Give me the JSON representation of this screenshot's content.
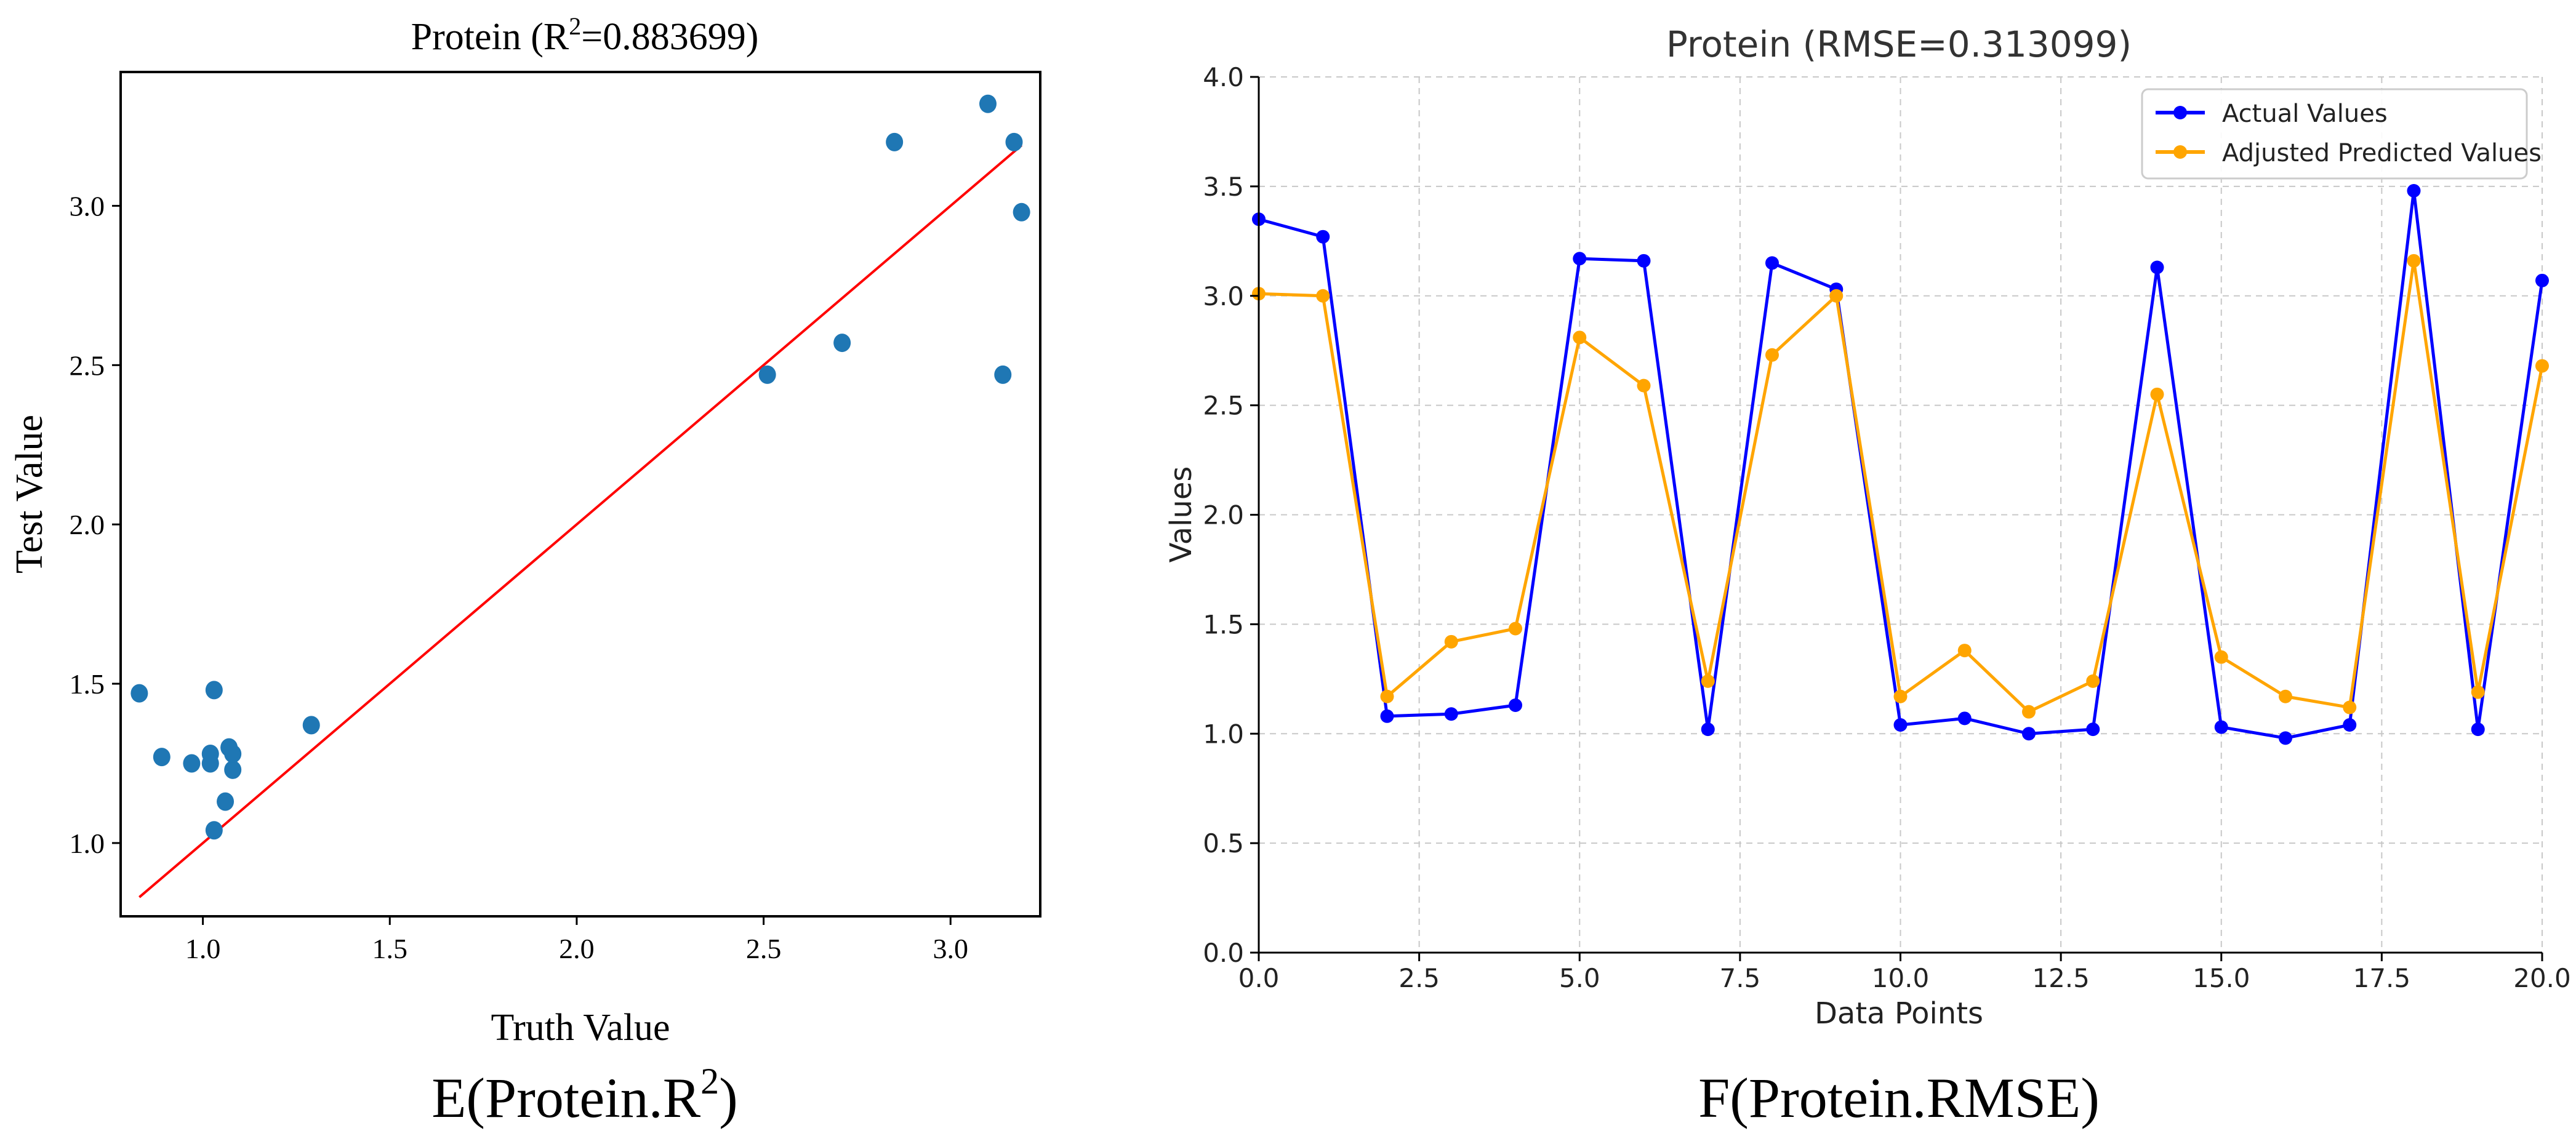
{
  "charts": {
    "left": {
      "title": "Protein (R2=0.883699)",
      "caption": "E(Protein.R2)"
    },
    "right": {
      "caption": "F(Protein.RMSE)"
    }
  },
  "chart_data": [
    {
      "type": "scatter",
      "title": "Protein (R²=0.883699)",
      "title_prefix": "Protein (R",
      "title_sup": "2",
      "title_suffix": "=0.883699)",
      "xlabel": "Truth Value",
      "ylabel": "Test Value",
      "xlim": [
        0.78,
        3.24
      ],
      "ylim": [
        0.77,
        3.42
      ],
      "xticks": [
        1.0,
        1.5,
        2.0,
        2.5,
        3.0
      ],
      "xtick_labels": [
        "1.0",
        "1.5",
        "2.0",
        "2.5",
        "3.0"
      ],
      "yticks": [
        1.0,
        1.5,
        2.0,
        2.5,
        3.0
      ],
      "ytick_labels": [
        "1.0",
        "1.5",
        "2.0",
        "2.5",
        "3.0"
      ],
      "point_color": "#1f77b4",
      "fit_line_color": "#ff0000",
      "points": [
        {
          "x": 0.83,
          "y": 1.47
        },
        {
          "x": 0.89,
          "y": 1.27
        },
        {
          "x": 0.97,
          "y": 1.25
        },
        {
          "x": 1.02,
          "y": 1.28
        },
        {
          "x": 1.02,
          "y": 1.25
        },
        {
          "x": 1.03,
          "y": 1.48
        },
        {
          "x": 1.03,
          "y": 1.04
        },
        {
          "x": 1.06,
          "y": 1.13
        },
        {
          "x": 1.07,
          "y": 1.3
        },
        {
          "x": 1.08,
          "y": 1.23
        },
        {
          "x": 1.08,
          "y": 1.28
        },
        {
          "x": 1.29,
          "y": 1.37
        },
        {
          "x": 2.51,
          "y": 2.47
        },
        {
          "x": 2.71,
          "y": 2.57
        },
        {
          "x": 2.85,
          "y": 3.2
        },
        {
          "x": 3.1,
          "y": 3.32
        },
        {
          "x": 3.14,
          "y": 2.47
        },
        {
          "x": 3.17,
          "y": 3.2
        },
        {
          "x": 3.19,
          "y": 2.98
        }
      ],
      "fit_line": {
        "x": [
          0.83,
          3.19
        ],
        "y": [
          0.83,
          3.19
        ]
      },
      "caption_prefix": "E(Protein.R",
      "caption_sup": "2",
      "caption_suffix": ")"
    },
    {
      "type": "line",
      "title": "Protein (RMSE=0.313099)",
      "xlabel": "Data Points",
      "ylabel": "Values",
      "xlim": [
        0,
        20
      ],
      "ylim": [
        0,
        4
      ],
      "grid": true,
      "legend_position": "top-right",
      "xticks": [
        0,
        2.5,
        5,
        7.5,
        10,
        12.5,
        15,
        17.5,
        20
      ],
      "xtick_labels": [
        "0.0",
        "2.5",
        "5.0",
        "7.5",
        "10.0",
        "12.5",
        "15.0",
        "17.5",
        "20.0"
      ],
      "yticks": [
        0,
        0.5,
        1,
        1.5,
        2,
        2.5,
        3,
        3.5,
        4
      ],
      "ytick_labels": [
        "0.0",
        "0.5",
        "1.0",
        "1.5",
        "2.0",
        "2.5",
        "3.0",
        "3.5",
        "4.0"
      ],
      "x": [
        0,
        1,
        2,
        3,
        4,
        5,
        6,
        7,
        8,
        9,
        10,
        11,
        12,
        13,
        14,
        15,
        16,
        17,
        18,
        19,
        20
      ],
      "series": [
        {
          "name": "Actual Values",
          "color": "#0000ff",
          "values": [
            3.35,
            3.27,
            1.08,
            1.09,
            1.13,
            3.17,
            3.16,
            1.02,
            3.15,
            3.03,
            1.04,
            1.07,
            1.0,
            1.02,
            3.13,
            1.03,
            0.98,
            1.04,
            3.48,
            1.02,
            3.07
          ]
        },
        {
          "name": "Adjusted Predicted Values",
          "color": "#ffa500",
          "values": [
            3.01,
            3.0,
            1.17,
            1.42,
            1.48,
            2.81,
            2.59,
            1.24,
            2.73,
            3.0,
            1.17,
            1.38,
            1.1,
            1.24,
            2.55,
            1.35,
            1.17,
            1.12,
            3.16,
            1.19,
            2.68
          ]
        }
      ],
      "caption": "F(Protein.RMSE)"
    }
  ]
}
